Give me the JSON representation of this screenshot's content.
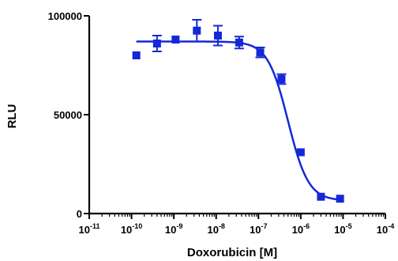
{
  "chart_data": {
    "type": "scatter",
    "title": "",
    "xlabel": "Doxorubicin [M]",
    "ylabel": "RLU",
    "x_scale": "log10",
    "xlim": [
      1e-11,
      0.0001
    ],
    "ylim": [
      0,
      100000
    ],
    "x_tick_exponents": [
      -11,
      -10,
      -9,
      -8,
      -7,
      -6,
      -5,
      -4
    ],
    "x_tick_base": "10",
    "y_ticks": [
      {
        "value": 0,
        "label": "0"
      },
      {
        "value": 50000,
        "label": "50000"
      },
      {
        "value": 100000,
        "label": "100000"
      }
    ],
    "grid": false,
    "legend": "none",
    "color": "#1428d8",
    "series": [
      {
        "marker": "square",
        "points": [
          {
            "x": 1.3e-10,
            "y": 80000,
            "err": 0
          },
          {
            "x": 4e-10,
            "y": 86000,
            "err": 4000
          },
          {
            "x": 1.1e-09,
            "y": 88000,
            "err": 0
          },
          {
            "x": 3.5e-09,
            "y": 92500,
            "err": 5500
          },
          {
            "x": 1.1e-08,
            "y": 90000,
            "err": 5000
          },
          {
            "x": 3.5e-08,
            "y": 86500,
            "err": 3000
          },
          {
            "x": 1.1e-07,
            "y": 81500,
            "err": 2500
          },
          {
            "x": 3.5e-07,
            "y": 68000,
            "err": 2500
          },
          {
            "x": 1e-06,
            "y": 31000,
            "err": 0
          },
          {
            "x": 3e-06,
            "y": 8500,
            "err": 0
          },
          {
            "x": 8.5e-06,
            "y": 7500,
            "err": 0
          }
        ]
      }
    ],
    "fit": {
      "model": "four-parameter logistic",
      "top": 87000,
      "bottom": 6500,
      "log_ec50": -6.3,
      "hill_slope": -1.8
    }
  }
}
